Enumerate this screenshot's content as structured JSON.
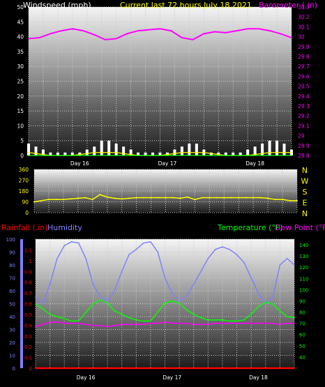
{
  "chart_data": [
    {
      "type": "line",
      "title": "Current last 72 hours July 18 2021",
      "ylabel_left": "Windspeed (mph)",
      "ylabel_right": "Barometer (.in)",
      "x_ticks": [
        "Day 16",
        "Day 17",
        "Day 18"
      ],
      "x_tick_hours": [
        14,
        38,
        62
      ],
      "x_range_hours": [
        0,
        72
      ],
      "ylim_left": [
        0,
        50
      ],
      "yticks_left": [
        0,
        5,
        10,
        15,
        20,
        25,
        30,
        35,
        40,
        45,
        50
      ],
      "ylim_right": [
        28.8,
        30.3
      ],
      "yticks_right": [
        "28.8",
        "28.9",
        "29",
        "29.1",
        "29.2",
        "29.3",
        "29.4",
        "29.5",
        "29.6",
        "29.7",
        "29.8",
        "29.9",
        "30",
        "30.1",
        "30.2",
        "30.3"
      ],
      "grid": true,
      "series": [
        {
          "name": "Barometer (.in)",
          "axis": "right",
          "color": "#ff00ff",
          "x": [
            0,
            3,
            6,
            9,
            12,
            15,
            18,
            21,
            24,
            27,
            30,
            33,
            36,
            39,
            42,
            45,
            48,
            51,
            54,
            57,
            60,
            63,
            66,
            69,
            72
          ],
          "values": [
            29.98,
            29.99,
            30.03,
            30.06,
            30.08,
            30.06,
            30.02,
            29.97,
            29.98,
            30.03,
            30.06,
            30.07,
            30.08,
            30.06,
            29.99,
            29.97,
            30.03,
            30.05,
            30.04,
            30.06,
            30.08,
            30.08,
            30.06,
            30.03,
            29.99
          ]
        },
        {
          "name": "Wind gust",
          "axis": "left",
          "color": "#ffffff",
          "style": "bars",
          "x": [
            0,
            2,
            4,
            6,
            8,
            10,
            12,
            14,
            16,
            18,
            20,
            22,
            24,
            26,
            28,
            30,
            32,
            34,
            36,
            38,
            40,
            42,
            44,
            46,
            48,
            50,
            52,
            54,
            56,
            58,
            60,
            62,
            64,
            66,
            68,
            70,
            72
          ],
          "values": [
            4,
            3,
            2,
            1,
            1,
            1,
            1,
            1,
            2,
            3,
            5,
            5,
            4,
            3,
            2,
            1,
            1,
            1,
            1,
            1,
            2,
            3,
            4,
            4,
            2,
            1,
            1,
            1,
            1,
            1,
            2,
            3,
            4,
            5,
            5,
            4,
            2
          ]
        },
        {
          "name": "Wind average",
          "axis": "left",
          "color": "#ffff00",
          "x": [
            0,
            6,
            12,
            18,
            24,
            30,
            36,
            42,
            48,
            54,
            60,
            66,
            72
          ],
          "values": [
            1,
            0,
            0,
            1,
            1,
            0,
            0,
            1,
            1,
            0,
            0,
            1,
            1
          ]
        },
        {
          "name": "Wind baseline",
          "axis": "left",
          "color": "#00ff00",
          "x": [
            0,
            72
          ],
          "values": [
            0,
            0
          ]
        }
      ]
    },
    {
      "type": "line",
      "ylim": [
        0,
        360
      ],
      "yticks": [
        0,
        90,
        180,
        270,
        360
      ],
      "direction_labels": [
        "N",
        "W",
        "S",
        "E",
        "N"
      ],
      "x_ticks": [
        "Day 16",
        "Day 17",
        "Day 18"
      ],
      "x_range_hours": [
        0,
        72
      ],
      "series": [
        {
          "name": "Wind direction",
          "color": "#ffff00",
          "x": [
            0,
            2,
            4,
            6,
            8,
            10,
            12,
            14,
            16,
            18,
            20,
            22,
            24,
            26,
            28,
            30,
            32,
            34,
            36,
            38,
            40,
            42,
            44,
            46,
            48,
            50,
            52,
            54,
            56,
            58,
            60,
            62,
            64,
            66,
            68,
            70,
            72
          ],
          "values": [
            90,
            100,
            110,
            110,
            110,
            115,
            120,
            125,
            110,
            150,
            130,
            120,
            115,
            120,
            125,
            125,
            125,
            125,
            125,
            125,
            120,
            130,
            110,
            125,
            125,
            125,
            125,
            125,
            125,
            125,
            125,
            125,
            120,
            110,
            110,
            100,
            100
          ]
        }
      ]
    },
    {
      "type": "line",
      "ylabel_left_1": "Rainfall (.in)",
      "ylabel_left_2": "Humidity",
      "ylabel_right_1": "Temperature (°F)",
      "ylabel_right_2": "Dew Point (°F)",
      "x_ticks": [
        "Day 16",
        "Day 17",
        "Day 18"
      ],
      "x_range_hours": [
        0,
        72
      ],
      "ylim_humidity": [
        0,
        100
      ],
      "yticks_humidity": [
        0,
        10,
        20,
        30,
        40,
        50,
        60,
        70,
        80,
        90,
        100
      ],
      "ylim_rain": [
        0,
        1.2
      ],
      "yticks_rain": [
        "0",
        "0.1",
        "0.2",
        "0.3",
        "0.4",
        "0.5",
        "0.6",
        "0.7",
        "0.8",
        "0.9",
        "1",
        "1.1"
      ],
      "ylim_temp": [
        30,
        145
      ],
      "yticks_temp": [
        40,
        50,
        60,
        70,
        80,
        90,
        100,
        110,
        120,
        130,
        140
      ],
      "grid": true,
      "series": [
        {
          "name": "Humidity",
          "axis": "humidity",
          "color": "#8080ff",
          "x": [
            0,
            2,
            4,
            6,
            8,
            10,
            12,
            14,
            16,
            18,
            20,
            22,
            24,
            26,
            28,
            30,
            32,
            34,
            36,
            38,
            40,
            42,
            44,
            46,
            48,
            50,
            52,
            54,
            56,
            58,
            60,
            62,
            64,
            66,
            68,
            70,
            72
          ],
          "values": [
            55,
            50,
            65,
            85,
            95,
            98,
            97,
            85,
            65,
            55,
            52,
            60,
            75,
            88,
            92,
            97,
            98,
            90,
            70,
            58,
            52,
            56,
            65,
            75,
            85,
            92,
            94,
            92,
            88,
            82,
            70,
            58,
            50,
            55,
            80,
            85,
            80
          ]
        },
        {
          "name": "Temperature (°F)",
          "axis": "temp",
          "color": "#00ff00",
          "x": [
            0,
            2,
            4,
            6,
            8,
            10,
            12,
            14,
            16,
            18,
            20,
            22,
            24,
            26,
            28,
            30,
            32,
            34,
            36,
            38,
            40,
            42,
            44,
            46,
            48,
            50,
            52,
            54,
            56,
            58,
            60,
            62,
            64,
            66,
            68,
            70,
            72
          ],
          "values": [
            87,
            83,
            78,
            76,
            74,
            72,
            72,
            80,
            87,
            91,
            88,
            81,
            78,
            75,
            73,
            72,
            72,
            80,
            88,
            90,
            88,
            82,
            78,
            75,
            73,
            73,
            73,
            72,
            72,
            73,
            78,
            85,
            89,
            87,
            81,
            76,
            75
          ]
        },
        {
          "name": "Dew Point (°F)",
          "axis": "temp",
          "color": "#ff00ff",
          "x": [
            0,
            2,
            4,
            6,
            8,
            10,
            12,
            14,
            16,
            18,
            20,
            22,
            24,
            26,
            28,
            30,
            32,
            34,
            36,
            38,
            40,
            42,
            44,
            46,
            48,
            50,
            52,
            54,
            56,
            58,
            60,
            62,
            64,
            66,
            68,
            70,
            72
          ],
          "values": [
            67,
            69,
            71,
            71,
            70,
            70,
            70,
            69,
            68,
            68,
            67,
            68,
            69,
            69,
            69,
            69,
            70,
            70,
            71,
            70,
            70,
            70,
            69,
            69,
            69,
            70,
            70,
            70,
            70,
            70,
            70,
            70,
            70,
            70,
            69,
            70,
            70
          ]
        },
        {
          "name": "Rainfall (.in)",
          "axis": "rain",
          "color": "#ff0000",
          "x": [
            0,
            72
          ],
          "values": [
            0,
            0
          ]
        }
      ]
    }
  ],
  "colors": {
    "background": "#000000",
    "panel_top": "#ffffff",
    "panel_bottom": "#202020",
    "grid": "#c8c8c8",
    "label_white": "#ffffff",
    "label_yellow": "#ffff00",
    "label_magenta": "#ff00ff",
    "label_red": "#ff0000",
    "label_blue": "#8080ff",
    "label_green": "#00ff00"
  }
}
